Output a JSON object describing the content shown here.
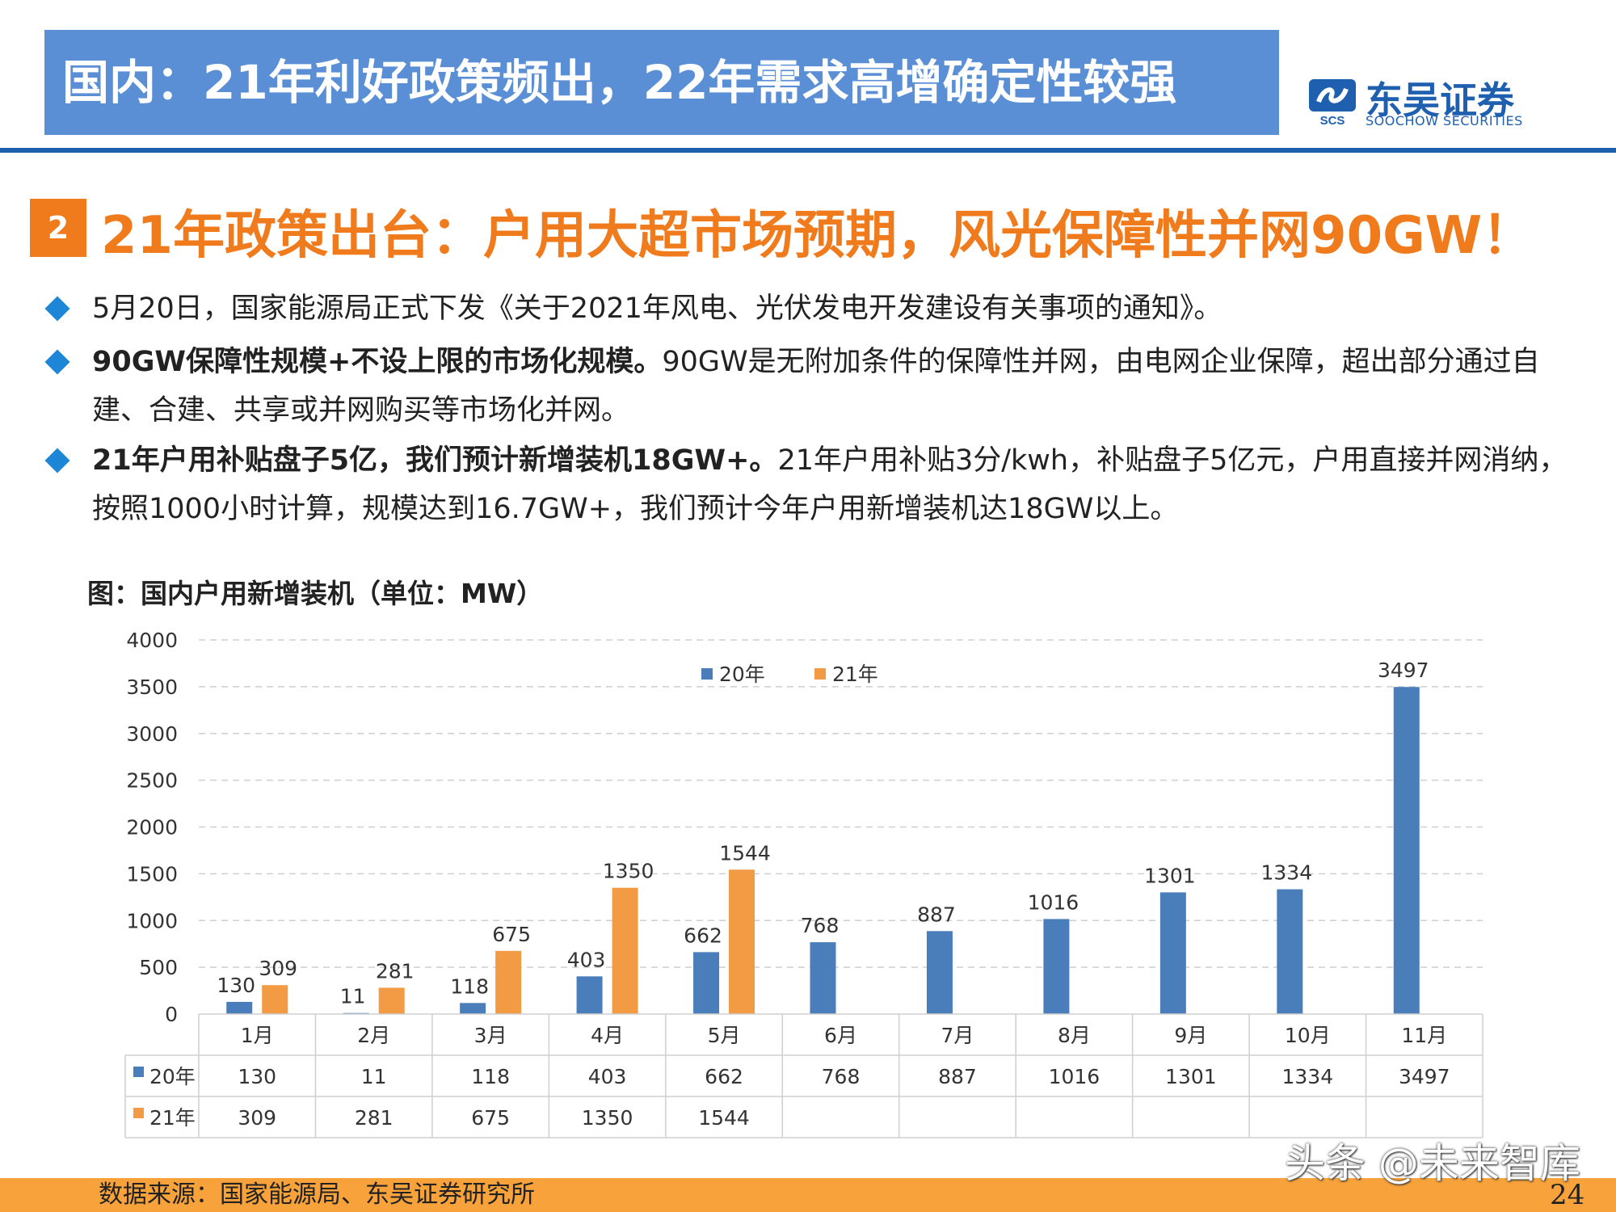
{
  "header": {
    "title": "国内：21年利好政策频出，22年需求高增确定性较强",
    "logo_name": "东吴证券",
    "logo_abbr": "SCS",
    "logo_en": "SOOCHOW SECURITIES"
  },
  "section": {
    "number": "2",
    "title": "21年政策出台：户用大超市场预期，风光保障性并网90GW！"
  },
  "bullets": [
    {
      "bold": "",
      "text": "5月20日，国家能源局正式下发《关于2021年风电、光伏发电开发建设有关事项的通知》。"
    },
    {
      "bold": "90GW保障性规模+不设上限的市场化规模。",
      "text": "90GW是无附加条件的保障性并网，由电网企业保障，超出部分通过自建、合建、共享或并网购买等市场化并网。"
    },
    {
      "bold": "21年户用补贴盘子5亿，我们预计新增装机18GW+。",
      "text": "21年户用补贴3分/kwh，补贴盘子5亿元，户用直接并网消纳，按照1000小时计算，规模达到16.7GW+，我们预计今年户用新增装机达18GW以上。"
    }
  ],
  "chart_title": "图：国内户用新增装机（单位：MW）",
  "chart_data": {
    "type": "bar",
    "categories": [
      "1月",
      "2月",
      "3月",
      "4月",
      "5月",
      "6月",
      "7月",
      "8月",
      "9月",
      "10月",
      "11月"
    ],
    "series": [
      {
        "name": "20年",
        "color": "#4a7ebb",
        "values": [
          130,
          11,
          118,
          403,
          662,
          768,
          887,
          1016,
          1301,
          1334,
          3497
        ]
      },
      {
        "name": "21年",
        "color": "#f39a45",
        "values": [
          309,
          281,
          675,
          1350,
          1544,
          null,
          null,
          null,
          null,
          null,
          null
        ]
      }
    ],
    "ylim": [
      0,
      4000
    ],
    "yticks": [
      0,
      500,
      1000,
      1500,
      2000,
      2500,
      3000,
      3500,
      4000
    ],
    "grid": true,
    "legend_position": "top-center",
    "data_table": true
  },
  "footer": {
    "source": "数据来源：国家能源局、东吴证券研究所",
    "page_number": "24",
    "watermark": "头条 @未来智库"
  },
  "colors": {
    "title_band": "#5a8fd6",
    "accent_orange": "#f07b1c",
    "brand_blue": "#1f5fb0",
    "bullet_diamond": "#1e86d6"
  }
}
